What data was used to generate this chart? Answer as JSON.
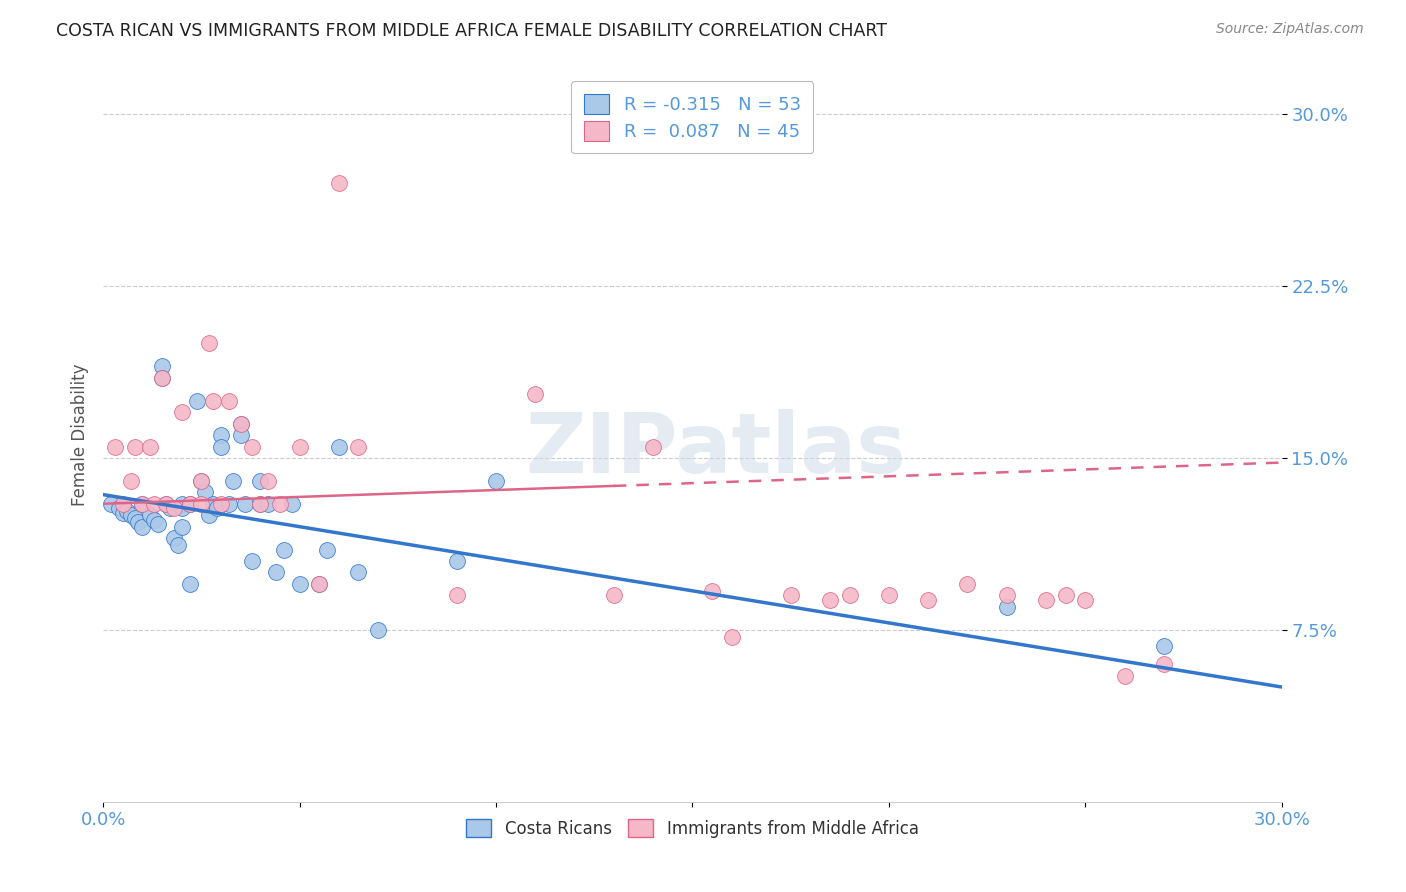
{
  "title": "COSTA RICAN VS IMMIGRANTS FROM MIDDLE AFRICA FEMALE DISABILITY CORRELATION CHART",
  "source": "Source: ZipAtlas.com",
  "ylabel": "Female Disability",
  "xlim": [
    0.0,
    0.3
  ],
  "ylim": [
    0.0,
    0.32
  ],
  "yticks": [
    0.075,
    0.15,
    0.225,
    0.3
  ],
  "ytick_labels": [
    "7.5%",
    "15.0%",
    "22.5%",
    "30.0%"
  ],
  "xtick_positions": [
    0.0,
    0.05,
    0.1,
    0.15,
    0.2,
    0.25,
    0.3
  ],
  "xtick_labels": [
    "0.0%",
    "",
    "",
    "",
    "",
    "",
    "30.0%"
  ],
  "blue_R": -0.315,
  "blue_N": 53,
  "pink_R": 0.087,
  "pink_N": 45,
  "blue_color": "#aac8e8",
  "pink_color": "#f5b8c8",
  "line_blue": "#3377cc",
  "line_pink": "#dd6688",
  "background_color": "#ffffff",
  "watermark": "ZIPatlas",
  "tick_color": "#5599dd",
  "blue_line_x": [
    0.0,
    0.3
  ],
  "blue_line_y": [
    0.134,
    0.05
  ],
  "pink_line_x": [
    0.0,
    0.3
  ],
  "pink_line_y": [
    0.13,
    0.148
  ],
  "blue_scatter_x": [
    0.002,
    0.004,
    0.005,
    0.006,
    0.007,
    0.008,
    0.009,
    0.01,
    0.01,
    0.012,
    0.013,
    0.014,
    0.015,
    0.015,
    0.016,
    0.017,
    0.018,
    0.019,
    0.02,
    0.02,
    0.02,
    0.022,
    0.022,
    0.024,
    0.025,
    0.026,
    0.027,
    0.028,
    0.029,
    0.03,
    0.03,
    0.032,
    0.033,
    0.035,
    0.035,
    0.036,
    0.038,
    0.04,
    0.04,
    0.042,
    0.044,
    0.046,
    0.048,
    0.05,
    0.055,
    0.057,
    0.06,
    0.065,
    0.07,
    0.09,
    0.1,
    0.23,
    0.27
  ],
  "blue_scatter_y": [
    0.13,
    0.128,
    0.126,
    0.127,
    0.125,
    0.124,
    0.122,
    0.13,
    0.12,
    0.125,
    0.123,
    0.121,
    0.19,
    0.185,
    0.13,
    0.128,
    0.115,
    0.112,
    0.13,
    0.128,
    0.12,
    0.13,
    0.095,
    0.175,
    0.14,
    0.135,
    0.125,
    0.13,
    0.128,
    0.16,
    0.155,
    0.13,
    0.14,
    0.165,
    0.16,
    0.13,
    0.105,
    0.14,
    0.13,
    0.13,
    0.1,
    0.11,
    0.13,
    0.095,
    0.095,
    0.11,
    0.155,
    0.1,
    0.075,
    0.105,
    0.14,
    0.085,
    0.068
  ],
  "pink_scatter_x": [
    0.003,
    0.005,
    0.007,
    0.008,
    0.01,
    0.012,
    0.013,
    0.015,
    0.016,
    0.018,
    0.02,
    0.022,
    0.025,
    0.025,
    0.027,
    0.028,
    0.03,
    0.032,
    0.035,
    0.038,
    0.04,
    0.042,
    0.045,
    0.05,
    0.055,
    0.06,
    0.065,
    0.09,
    0.11,
    0.13,
    0.14,
    0.155,
    0.16,
    0.175,
    0.185,
    0.19,
    0.2,
    0.21,
    0.22,
    0.23,
    0.24,
    0.245,
    0.25,
    0.26,
    0.27
  ],
  "pink_scatter_y": [
    0.155,
    0.13,
    0.14,
    0.155,
    0.13,
    0.155,
    0.13,
    0.185,
    0.13,
    0.128,
    0.17,
    0.13,
    0.14,
    0.13,
    0.2,
    0.175,
    0.13,
    0.175,
    0.165,
    0.155,
    0.13,
    0.14,
    0.13,
    0.155,
    0.095,
    0.27,
    0.155,
    0.09,
    0.178,
    0.09,
    0.155,
    0.092,
    0.072,
    0.09,
    0.088,
    0.09,
    0.09,
    0.088,
    0.095,
    0.09,
    0.088,
    0.09,
    0.088,
    0.055,
    0.06
  ]
}
